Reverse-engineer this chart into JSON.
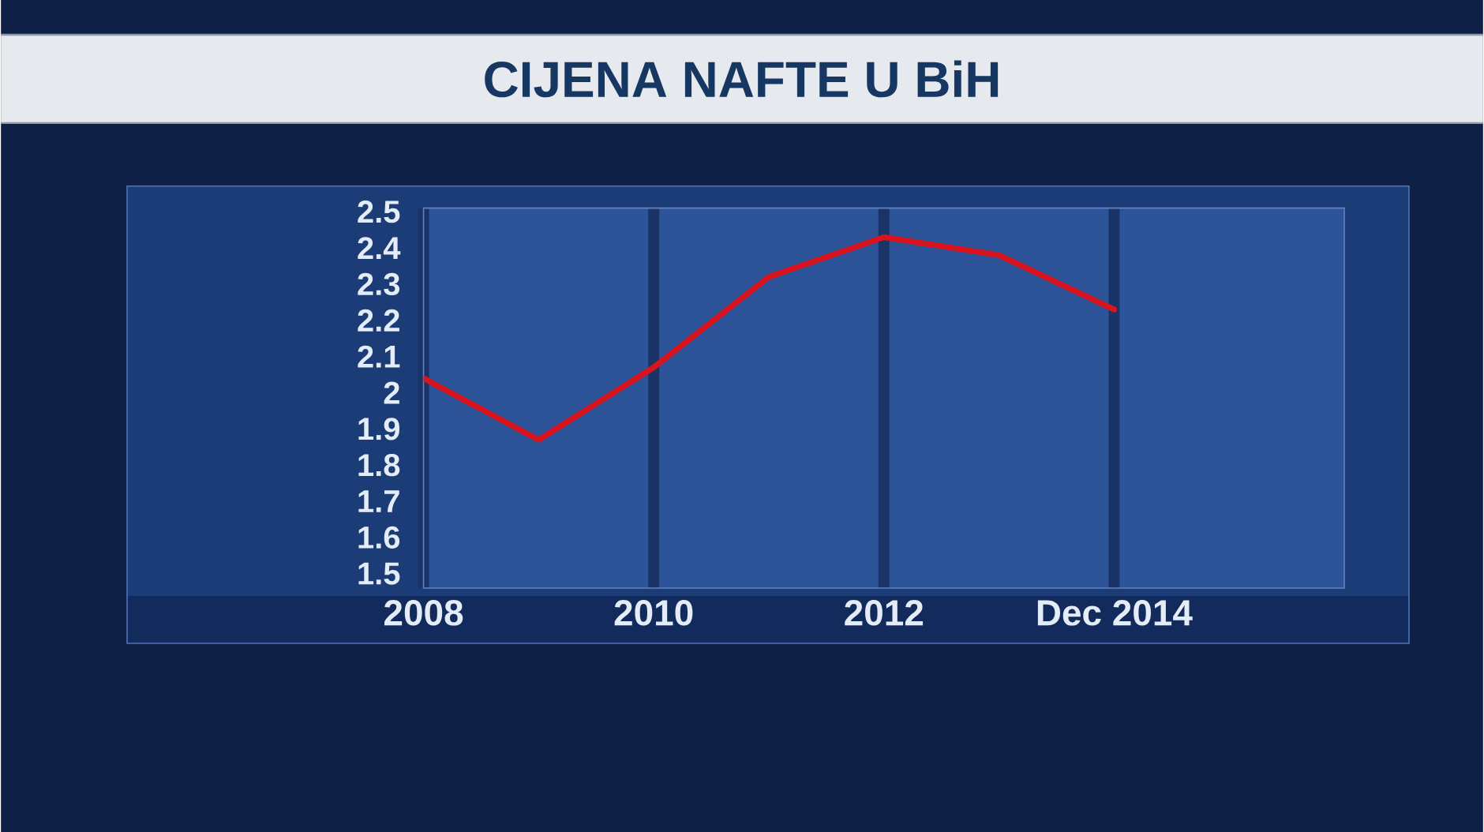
{
  "chart_data": {
    "type": "line",
    "title": "CIJENA NAFTE U BiH",
    "x": [
      2008,
      2009,
      2010,
      2011,
      2012,
      2013,
      2014
    ],
    "series": [
      {
        "color": "#d9141e",
        "values": [
          2.04,
          1.87,
          2.07,
          2.32,
          2.43,
          2.38,
          2.23
        ]
      }
    ],
    "xlim": [
      2008,
      2016
    ],
    "xticks": [
      2008,
      2010,
      2012,
      {
        "value": 2014,
        "label": "Dec 2014"
      }
    ],
    "ylim": [
      1.46,
      2.51
    ],
    "yticks": [
      1.5,
      1.6,
      1.7,
      1.8,
      1.9,
      2,
      2.1,
      2.2,
      2.3,
      2.4,
      2.5
    ],
    "grid": "x",
    "marker": "none",
    "line_style": "solid"
  }
}
